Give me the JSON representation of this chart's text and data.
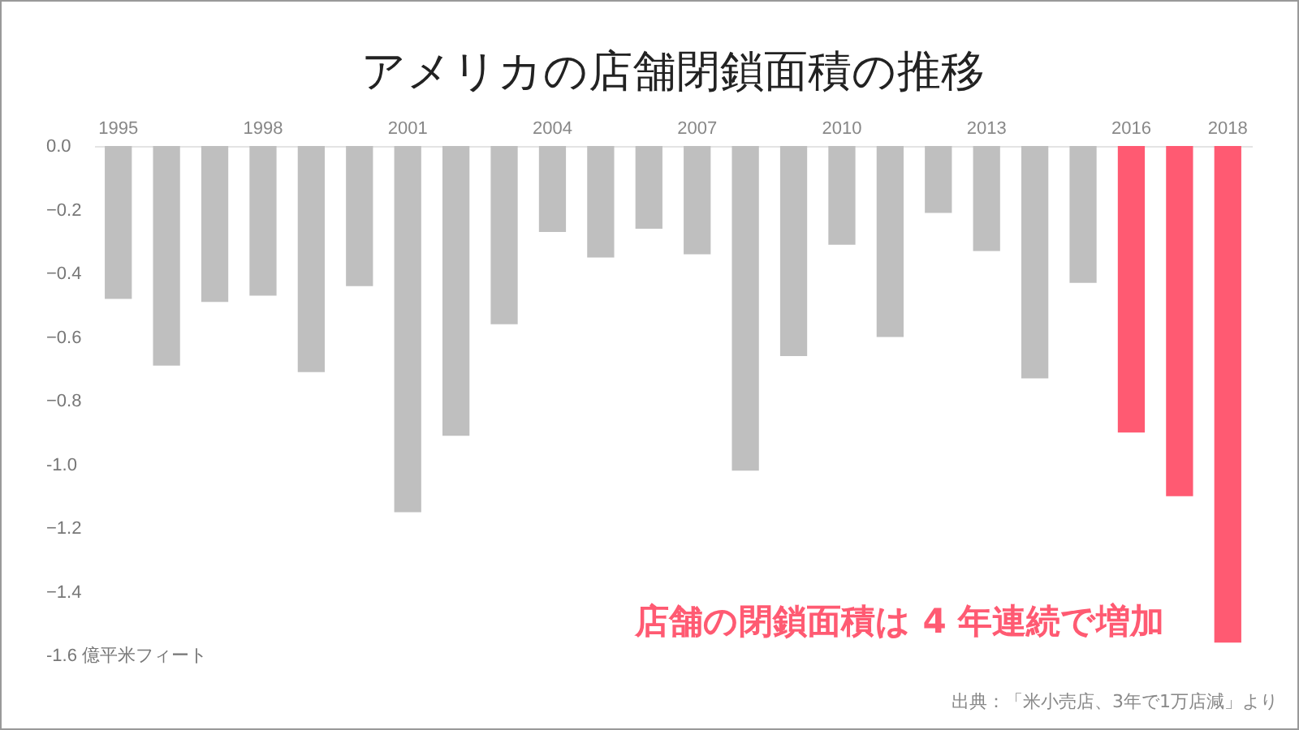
{
  "chart_data": {
    "type": "bar",
    "title": "アメリカの店舗閉鎖面積の推移",
    "categories": [
      "1995",
      null,
      null,
      "1998",
      null,
      null,
      "2001",
      null,
      null,
      "2004",
      null,
      null,
      "2007",
      null,
      null,
      "2010",
      null,
      null,
      "2013",
      null,
      null,
      "2016",
      null,
      "2018"
    ],
    "values": [
      -0.48,
      -0.69,
      -0.49,
      -0.47,
      -0.71,
      -0.44,
      -1.15,
      -0.91,
      -0.56,
      -0.27,
      -0.35,
      -0.26,
      -0.34,
      -1.02,
      -0.66,
      -0.31,
      -0.6,
      -0.21,
      -0.33,
      -0.73,
      -0.43,
      -0.9,
      -1.1,
      -1.56
    ],
    "colors": [
      "#bfbfbf",
      "#bfbfbf",
      "#bfbfbf",
      "#bfbfbf",
      "#bfbfbf",
      "#bfbfbf",
      "#bfbfbf",
      "#bfbfbf",
      "#bfbfbf",
      "#bfbfbf",
      "#bfbfbf",
      "#bfbfbf",
      "#bfbfbf",
      "#bfbfbf",
      "#bfbfbf",
      "#bfbfbf",
      "#bfbfbf",
      "#bfbfbf",
      "#bfbfbf",
      "#bfbfbf",
      "#bfbfbf",
      "#ff5a72",
      "#ff5a72",
      "#ff5a72"
    ],
    "ylim": [
      -1.6,
      0
    ],
    "yticks": [
      {
        "value": 0,
        "label": "0.0"
      },
      -0.2,
      -0.4,
      -0.6,
      -0.8,
      {
        "value": -1,
        "label": "-1.0"
      },
      -1.2,
      -1.4,
      {
        "value": -1.6,
        "label": "-1.6 億平米フィート"
      }
    ],
    "grid": false,
    "annotations": [
      "店舗の閉鎖面積は 4 年連続で増加",
      "出典：「米小売店、3年で1万店減」より"
    ]
  }
}
